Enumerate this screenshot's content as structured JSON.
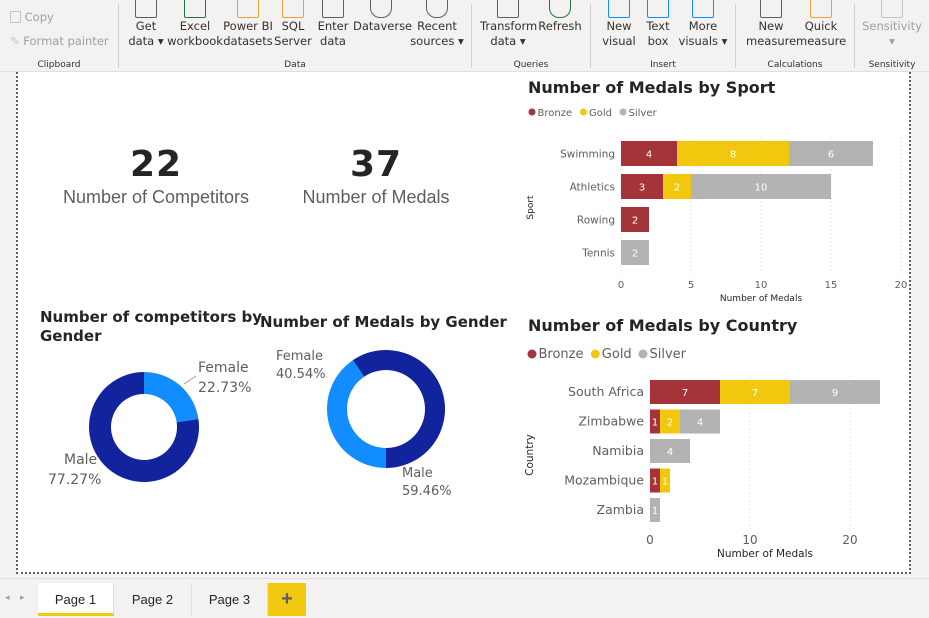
{
  "ribbon": {
    "clipboard": {
      "label": "Clipboard",
      "copy": "Copy",
      "format_painter": "Format painter"
    },
    "data": {
      "label": "Data",
      "buttons": [
        {
          "line1": "Get",
          "line2": "data ▾"
        },
        {
          "line1": "Excel",
          "line2": "workbook"
        },
        {
          "line1": "Power BI",
          "line2": "datasets"
        },
        {
          "line1": "SQL",
          "line2": "Server"
        },
        {
          "line1": "Enter",
          "line2": "data"
        },
        {
          "line1": "Dataverse",
          "line2": ""
        },
        {
          "line1": "Recent",
          "line2": "sources ▾"
        }
      ]
    },
    "queries": {
      "label": "Queries",
      "buttons": [
        {
          "line1": "Transform",
          "line2": "data ▾"
        },
        {
          "line1": "Refresh",
          "line2": ""
        }
      ]
    },
    "insert": {
      "label": "Insert",
      "buttons": [
        {
          "line1": "New",
          "line2": "visual"
        },
        {
          "line1": "Text",
          "line2": "box"
        },
        {
          "line1": "More",
          "line2": "visuals ▾"
        }
      ]
    },
    "calculations": {
      "label": "Calculations",
      "buttons": [
        {
          "line1": "New",
          "line2": "measure"
        },
        {
          "line1": "Quick",
          "line2": "measure"
        }
      ]
    },
    "sensitivity": {
      "label": "Sensitivity",
      "button": "Sensitivity",
      "caret": "▾"
    }
  },
  "kpis": [
    {
      "value": "22",
      "label": "Number of Competitors"
    },
    {
      "value": "37",
      "label": "Number of Medals"
    }
  ],
  "colors": {
    "bronze": "#a4343a",
    "gold": "#f2c80f",
    "silver": "#b3b3b3",
    "donut_dark": "#12239e",
    "donut_light": "#118dff"
  },
  "donuts": {
    "competitors": {
      "title_line1": "Number of competitors by",
      "title_line2": "Gender",
      "female_label": "Female",
      "female_pct": "22.73%",
      "male_label": "Male",
      "male_pct": "77.27%"
    },
    "medals": {
      "title": "Number of Medals by Gender",
      "female_label": "Female",
      "female_pct": "40.54%",
      "male_label": "Male",
      "male_pct": "59.46%"
    }
  },
  "chart_data": [
    {
      "type": "bar",
      "orientation": "horizontal-stacked",
      "title": "Number of Medals by Sport",
      "xlabel": "Number of Medals",
      "ylabel": "Sport",
      "legend": [
        "Bronze",
        "Gold",
        "Silver"
      ],
      "legend_position": "top-left",
      "categories": [
        "Swimming",
        "Athletics",
        "Rowing",
        "Tennis"
      ],
      "series": [
        {
          "name": "Bronze",
          "values": [
            4,
            3,
            2,
            0
          ]
        },
        {
          "name": "Gold",
          "values": [
            8,
            2,
            0,
            0
          ]
        },
        {
          "name": "Silver",
          "values": [
            6,
            10,
            0,
            2
          ]
        }
      ],
      "xlim": [
        0,
        20
      ],
      "xticks": [
        0,
        5,
        10,
        15,
        20
      ]
    },
    {
      "type": "bar",
      "orientation": "horizontal-stacked",
      "title": "Number of Medals by Country",
      "xlabel": "Number of Medals",
      "ylabel": "Country",
      "legend": [
        "Bronze",
        "Gold",
        "Silver"
      ],
      "legend_position": "top-left",
      "categories": [
        "South Africa",
        "Zimbabwe",
        "Namibia",
        "Mozambique",
        "Zambia"
      ],
      "series": [
        {
          "name": "Bronze",
          "values": [
            7,
            1,
            0,
            1,
            0
          ]
        },
        {
          "name": "Gold",
          "values": [
            7,
            2,
            0,
            1,
            0
          ]
        },
        {
          "name": "Silver",
          "values": [
            9,
            4,
            4,
            0,
            1
          ]
        }
      ],
      "xlim": [
        0,
        23
      ],
      "xticks": [
        0,
        10,
        20
      ]
    }
  ],
  "tabs": [
    "Page 1",
    "Page 2",
    "Page 3"
  ],
  "add_tab": "+",
  "nav": {
    "prev": "◂",
    "next": "▸"
  }
}
